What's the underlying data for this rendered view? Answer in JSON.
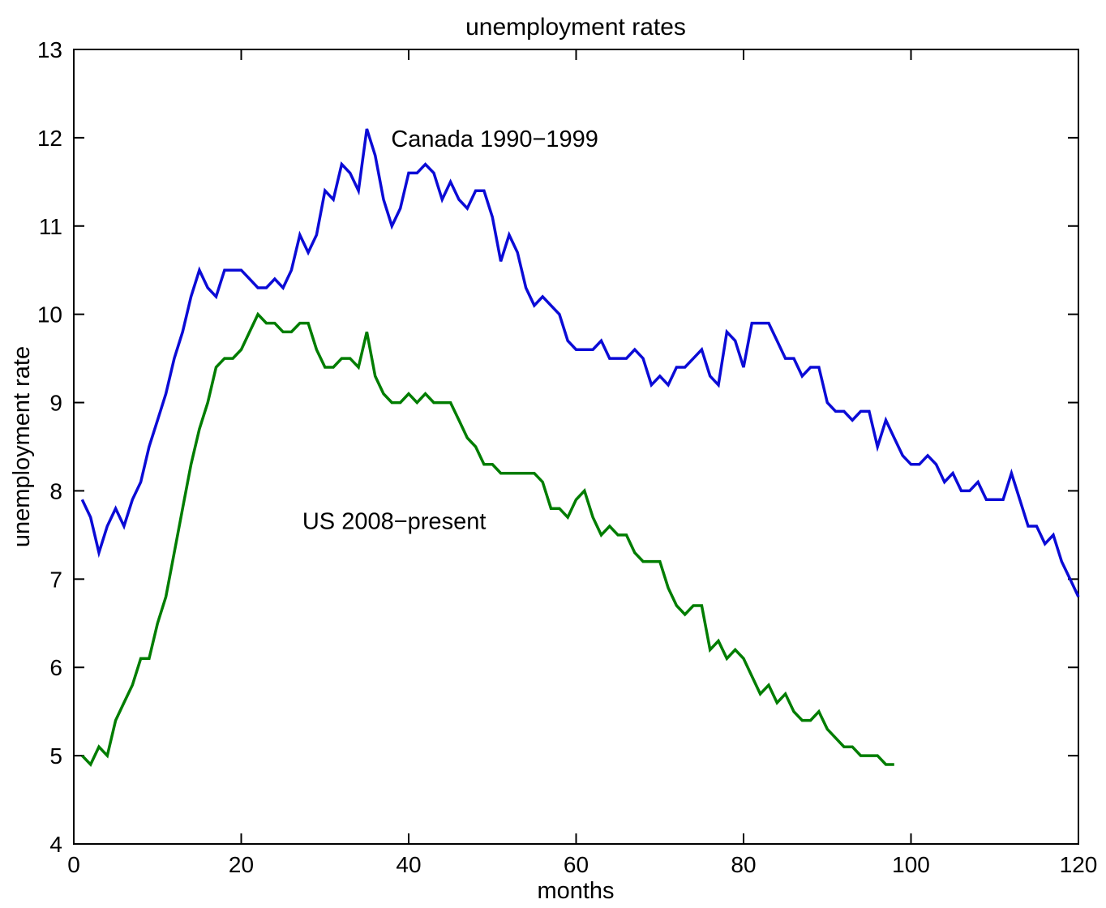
{
  "chart_data": {
    "type": "line",
    "title": "unemployment rates",
    "xlabel": "months",
    "ylabel": "unemployment rate",
    "xlim": [
      0,
      120
    ],
    "ylim": [
      4,
      13
    ],
    "xticks": [
      0,
      20,
      40,
      60,
      80,
      100,
      120
    ],
    "yticks": [
      4,
      5,
      6,
      7,
      8,
      9,
      10,
      11,
      12,
      13
    ],
    "grid": false,
    "legend_position": "none",
    "axis_color": "#000000",
    "series": [
      {
        "name": "Canada 1990-1999",
        "data_name": "canada-series-line",
        "color": "#0b0bd6",
        "x_start": 1,
        "values": [
          7.9,
          7.7,
          7.3,
          7.6,
          7.8,
          7.6,
          7.9,
          8.1,
          8.5,
          8.8,
          9.1,
          9.5,
          9.8,
          10.2,
          10.5,
          10.3,
          10.2,
          10.5,
          10.5,
          10.5,
          10.4,
          10.3,
          10.3,
          10.4,
          10.3,
          10.5,
          10.9,
          10.7,
          10.9,
          11.4,
          11.3,
          11.7,
          11.6,
          11.4,
          12.1,
          11.8,
          11.3,
          11.0,
          11.2,
          11.6,
          11.6,
          11.7,
          11.6,
          11.3,
          11.5,
          11.3,
          11.2,
          11.4,
          11.4,
          11.1,
          10.6,
          10.9,
          10.7,
          10.3,
          10.1,
          10.2,
          10.1,
          10.0,
          9.7,
          9.6,
          9.6,
          9.6,
          9.7,
          9.5,
          9.5,
          9.5,
          9.6,
          9.5,
          9.2,
          9.3,
          9.2,
          9.4,
          9.4,
          9.5,
          9.6,
          9.3,
          9.2,
          9.8,
          9.7,
          9.4,
          9.9,
          9.9,
          9.9,
          9.7,
          9.5,
          9.5,
          9.3,
          9.4,
          9.4,
          9.0,
          8.9,
          8.9,
          8.8,
          8.9,
          8.9,
          8.5,
          8.8,
          8.6,
          8.4,
          8.3,
          8.3,
          8.4,
          8.3,
          8.1,
          8.2,
          8.0,
          8.0,
          8.1,
          7.9,
          7.9,
          7.9,
          8.2,
          7.9,
          7.6,
          7.6,
          7.4,
          7.5,
          7.2,
          7.0,
          6.8
        ]
      },
      {
        "name": "US 2008-present",
        "data_name": "us-series-line",
        "color": "#007d00",
        "x_start": 1,
        "values": [
          5.0,
          4.9,
          5.1,
          5.0,
          5.4,
          5.6,
          5.8,
          6.1,
          6.1,
          6.5,
          6.8,
          7.3,
          7.8,
          8.3,
          8.7,
          9.0,
          9.4,
          9.5,
          9.5,
          9.6,
          9.8,
          10.0,
          9.9,
          9.9,
          9.8,
          9.8,
          9.9,
          9.9,
          9.6,
          9.4,
          9.4,
          9.5,
          9.5,
          9.4,
          9.8,
          9.3,
          9.1,
          9.0,
          9.0,
          9.1,
          9.0,
          9.1,
          9.0,
          9.0,
          9.0,
          8.8,
          8.6,
          8.5,
          8.3,
          8.3,
          8.2,
          8.2,
          8.2,
          8.2,
          8.2,
          8.1,
          7.8,
          7.8,
          7.7,
          7.9,
          8.0,
          7.7,
          7.5,
          7.6,
          7.5,
          7.5,
          7.3,
          7.2,
          7.2,
          7.2,
          6.9,
          6.7,
          6.6,
          6.7,
          6.7,
          6.2,
          6.3,
          6.1,
          6.2,
          6.1,
          5.9,
          5.7,
          5.8,
          5.6,
          5.7,
          5.5,
          5.4,
          5.4,
          5.5,
          5.3,
          5.2,
          5.1,
          5.1,
          5.0,
          5.0,
          5.0,
          4.9,
          4.9
        ]
      }
    ],
    "annotations": [
      {
        "text": "Canada 1990−1999",
        "x": 37.9,
        "y": 11.9,
        "color": "#000000"
      },
      {
        "text": "US 2008−present",
        "x": 27.3,
        "y": 7.57,
        "color": "#000000"
      }
    ]
  }
}
